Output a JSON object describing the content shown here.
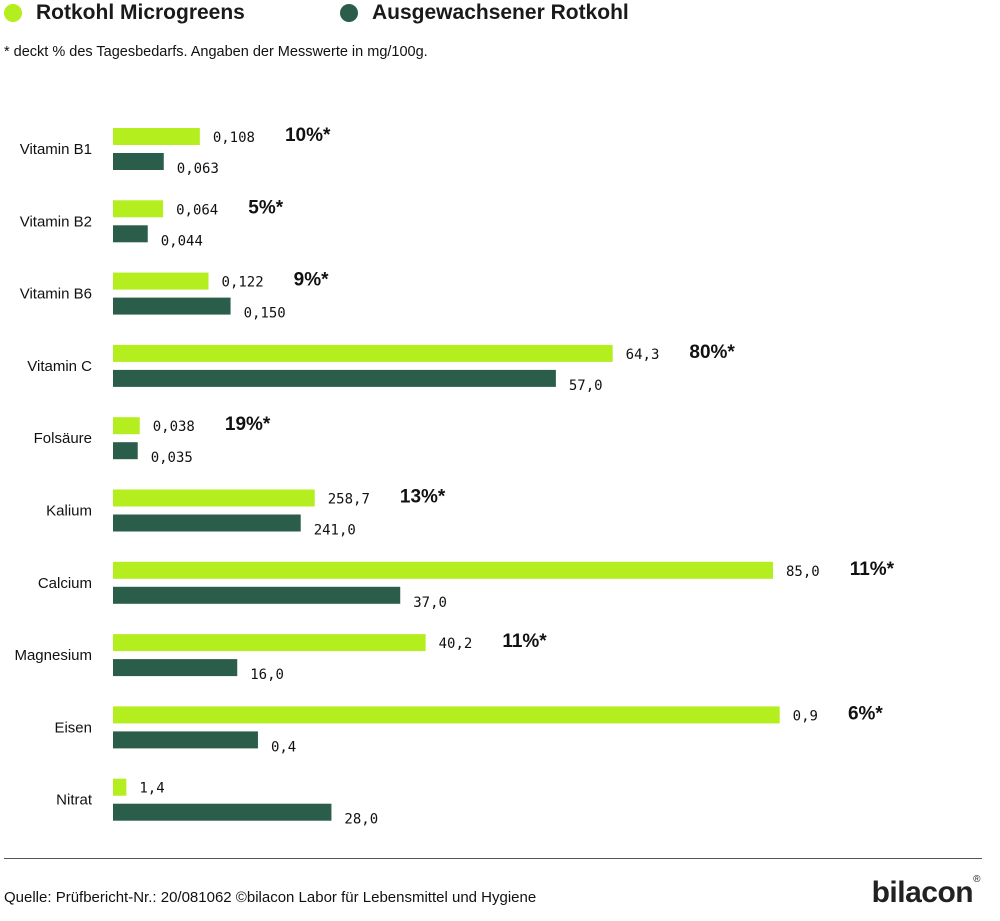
{
  "legend": {
    "items": [
      {
        "label": "Rotkohl Microgreens",
        "color": "#b4ee1e"
      },
      {
        "label": "Ausgewachsener Rotkohl",
        "color": "#2b5e4a"
      }
    ]
  },
  "note": "* deckt % des Tagesbedarfs. Angaben der Messwerte in mg/100g.",
  "chart_data": {
    "type": "bar",
    "orientation": "horizontal",
    "categories": [
      "Vitamin B1",
      "Vitamin B2",
      "Vitamin B6",
      "Vitamin C",
      "Folsäure",
      "Kalium",
      "Calcium",
      "Magnesium",
      "Eisen",
      "Nitrat"
    ],
    "series": [
      {
        "name": "Rotkohl Microgreens",
        "color": "#b4ee1e",
        "values": [
          0.108,
          0.064,
          0.122,
          64.3,
          0.038,
          258.7,
          85.0,
          40.2,
          0.9,
          1.4
        ],
        "labels": [
          "0,108",
          "0,064",
          "0,122",
          "64,3",
          "0,038",
          "258,7",
          "85,0",
          "40,2",
          "0,9",
          "1,4"
        ]
      },
      {
        "name": "Ausgewachsener Rotkohl",
        "color": "#2b5e4a",
        "values": [
          0.063,
          0.044,
          0.15,
          57.0,
          0.035,
          241.0,
          37.0,
          16.0,
          0.4,
          28.0
        ],
        "labels": [
          "0,063",
          "0,044",
          "0,150",
          "57,0",
          "0,035",
          "241,0",
          "37,0",
          "16,0",
          "0,4",
          "28,0"
        ]
      }
    ],
    "daily_value_percent": [
      "10%*",
      "5%*",
      "9%*",
      "80%*",
      "19%*",
      "13%*",
      "11%*",
      "11%*",
      "6%*",
      ""
    ],
    "grid": false
  },
  "footer": {
    "source": "Quelle: Prüfbericht-Nr.: 20/081062 ©bilacon Labor für Lebensmittel und Hygiene",
    "brand": "bilacon",
    "brand_mark": "®"
  }
}
